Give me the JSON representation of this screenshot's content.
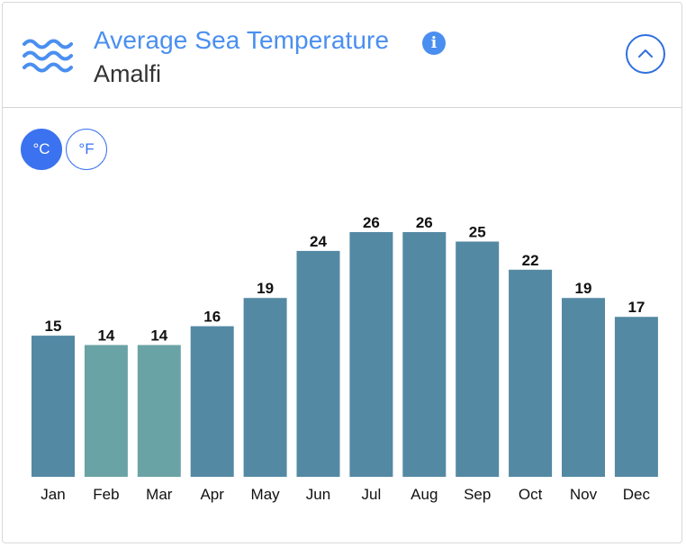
{
  "header": {
    "title": "Average Sea Temperature",
    "location": "Amalfi"
  },
  "units": {
    "celsius_label": "°C",
    "fahrenheit_label": "°F",
    "selected": "celsius"
  },
  "colors": {
    "accent": "#4a8ff0",
    "bar_default": "#5489a3",
    "bar_cool": "#6aa3a5"
  },
  "chart_data": {
    "type": "bar",
    "title": "Average Sea Temperature",
    "xlabel": "",
    "ylabel": "",
    "unit": "°C",
    "categories": [
      "Jan",
      "Feb",
      "Mar",
      "Apr",
      "May",
      "Jun",
      "Jul",
      "Aug",
      "Sep",
      "Oct",
      "Nov",
      "Dec"
    ],
    "values": [
      15,
      14,
      14,
      16,
      19,
      24,
      26,
      26,
      25,
      22,
      19,
      17
    ],
    "highlight": [
      false,
      true,
      true,
      false,
      false,
      false,
      false,
      false,
      false,
      false,
      false,
      false
    ],
    "ylim": [
      0,
      26
    ],
    "grid": false,
    "legend": "none"
  }
}
